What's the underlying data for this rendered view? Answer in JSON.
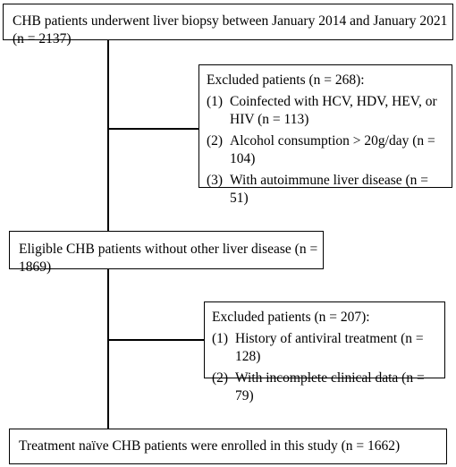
{
  "flowchart": {
    "top": {
      "text": "CHB patients underwent liver biopsy between January 2014 and January 2021 (n = 2137)"
    },
    "excluded1": {
      "title": "Excluded patients (n = 268):",
      "items": [
        {
          "num": "(1)",
          "text": "Coinfected with HCV, HDV, HEV, or HIV (n = 113)"
        },
        {
          "num": "(2)",
          "text": "Alcohol consumption > 20g/day (n = 104)"
        },
        {
          "num": "(3)",
          "text": "With autoimmune liver disease (n = 51)"
        }
      ]
    },
    "eligible": {
      "text": "Eligible CHB patients without other liver disease (n = 1869)"
    },
    "excluded2": {
      "title": "Excluded patients (n = 207):",
      "items": [
        {
          "num": "(1)",
          "text": "History of antiviral treatment (n = 128)"
        },
        {
          "num": "(2)",
          "text": "With incomplete clinical data (n = 79)"
        }
      ]
    },
    "enrolled": {
      "text": "Treatment naïve CHB patients were enrolled in this study (n = 1662)"
    }
  }
}
